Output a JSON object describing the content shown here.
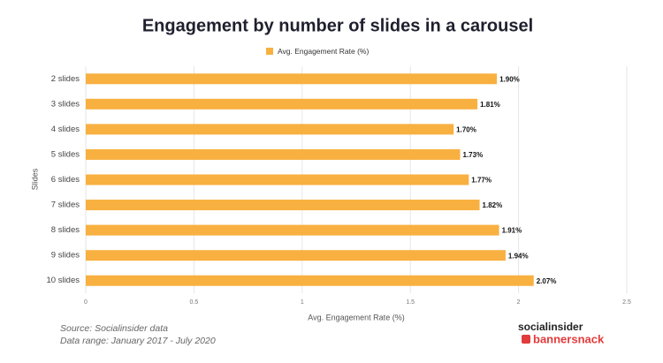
{
  "chart_data": {
    "type": "bar",
    "orientation": "horizontal",
    "title": "Engagement by number of slides in a carousel",
    "categories": [
      "2 slides",
      "3 slides",
      "4 slides",
      "5 slides",
      "6 slides",
      "7 slides",
      "8 slides",
      "9 slides",
      "10 slides"
    ],
    "series": [
      {
        "name": "Avg. Engagement Rate (%)",
        "color": "#f8b040",
        "values": [
          1.9,
          1.81,
          1.7,
          1.73,
          1.77,
          1.82,
          1.91,
          1.94,
          2.07
        ],
        "value_labels": [
          "1.90%",
          "1.81%",
          "1.70%",
          "1.73%",
          "1.77%",
          "1.82%",
          "1.91%",
          "1.94%",
          "2.07%"
        ]
      }
    ],
    "xlim": [
      0,
      2.5
    ],
    "xticks": [
      0,
      0.5,
      1,
      1.5,
      2,
      2.5
    ],
    "xlabel": "Avg. Engagement Rate (%)",
    "ylabel": "Slides",
    "grid": true
  },
  "footer": {
    "source": "Source: Socialinsider data",
    "date_range": "Data range: January 2017 - July 2020"
  },
  "logos": {
    "top": "socialinsider",
    "bottom": "bannersnack"
  }
}
